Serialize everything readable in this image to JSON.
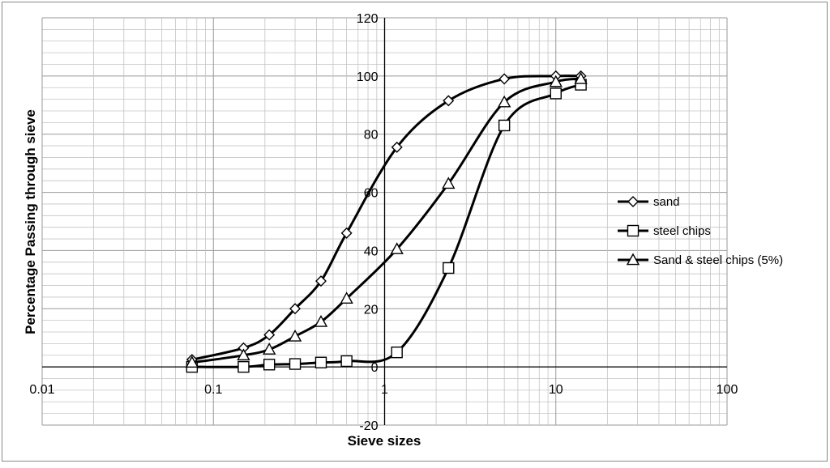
{
  "chart_data": {
    "type": "scatter",
    "xscale": "log",
    "xlim": [
      0.01,
      100
    ],
    "ylim": [
      -20,
      120
    ],
    "xlabel": "Sieve sizes",
    "ylabel": "Percentage Passing through sieve",
    "x_ticks": [
      "0.01",
      "0.1",
      "1",
      "10",
      "100"
    ],
    "y_ticks": [
      "-20",
      "0",
      "20",
      "40",
      "60",
      "80",
      "100",
      "120"
    ],
    "grid": true,
    "legend_position": "right",
    "series": [
      {
        "name": "sand",
        "marker": "diamond",
        "x": [
          0.075,
          0.15,
          0.212,
          0.3,
          0.425,
          0.6,
          1.18,
          2.36,
          5,
          10,
          14
        ],
        "y": [
          2.5,
          6.5,
          11,
          20,
          29.5,
          46,
          75.5,
          91.5,
          99,
          100,
          100
        ]
      },
      {
        "name": "steel chips",
        "marker": "square",
        "x": [
          0.075,
          0.15,
          0.212,
          0.3,
          0.425,
          0.6,
          1.18,
          2.36,
          5,
          10,
          14
        ],
        "y": [
          0,
          0,
          0.8,
          1,
          1.5,
          2,
          5,
          34,
          83,
          94,
          97
        ]
      },
      {
        "name": "Sand & steel chips (5%)",
        "marker": "triangle",
        "x": [
          0.075,
          0.15,
          0.212,
          0.3,
          0.425,
          0.6,
          1.18,
          2.36,
          5,
          10,
          14
        ],
        "y": [
          1.5,
          4,
          6,
          10.5,
          15.5,
          23.5,
          40.5,
          63,
          91,
          98,
          99
        ]
      }
    ]
  }
}
